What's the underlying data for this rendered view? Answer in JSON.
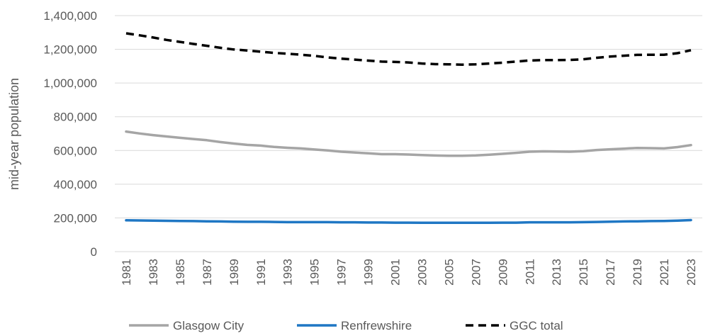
{
  "chart_data": {
    "type": "line",
    "title": "",
    "xlabel": "",
    "ylabel": "mid-year population",
    "ylim": [
      0,
      1400000
    ],
    "y_ticks": [
      0,
      200000,
      400000,
      600000,
      800000,
      1000000,
      1200000,
      1400000
    ],
    "y_tick_labels": [
      "0",
      "200,000",
      "400,000",
      "600,000",
      "800,000",
      "1,000,000",
      "1,200,000",
      "1,400,000"
    ],
    "grid": true,
    "legend_position": "bottom",
    "x": [
      1981,
      1982,
      1983,
      1984,
      1985,
      1986,
      1987,
      1988,
      1989,
      1990,
      1991,
      1992,
      1993,
      1994,
      1995,
      1996,
      1997,
      1998,
      1999,
      2000,
      2001,
      2002,
      2003,
      2004,
      2005,
      2006,
      2007,
      2008,
      2009,
      2010,
      2011,
      2012,
      2013,
      2014,
      2015,
      2016,
      2017,
      2018,
      2019,
      2020,
      2021,
      2022,
      2023
    ],
    "x_tick_labels": [
      "1981",
      "1983",
      "1985",
      "1987",
      "1989",
      "1991",
      "1993",
      "1995",
      "1997",
      "1999",
      "2001",
      "2003",
      "2005",
      "2007",
      "2009",
      "2011",
      "2013",
      "2015",
      "2017",
      "2019",
      "2021",
      "2023"
    ],
    "series": [
      {
        "name": "Glasgow City",
        "color": "#a5a5a5",
        "dash": "solid",
        "values": [
          712000,
          701000,
          691000,
          683000,
          675000,
          668000,
          661000,
          650000,
          641000,
          633000,
          629000,
          621000,
          616000,
          612000,
          606000,
          600000,
          593000,
          588000,
          583000,
          578000,
          578000,
          576000,
          573000,
          570000,
          569000,
          569000,
          571000,
          575000,
          580000,
          586000,
          593000,
          595000,
          594000,
          593000,
          596000,
          603000,
          607000,
          611000,
          615000,
          614000,
          612000,
          620000,
          632000
        ]
      },
      {
        "name": "Renfrewshire",
        "color": "#1f77c4",
        "dash": "solid",
        "values": [
          186000,
          185000,
          184000,
          183000,
          182000,
          181000,
          180000,
          179000,
          178000,
          177000,
          177000,
          176000,
          175000,
          175000,
          175000,
          175000,
          174000,
          174000,
          173000,
          173000,
          172000,
          172000,
          171000,
          171000,
          171000,
          171000,
          171000,
          171000,
          172000,
          172000,
          174000,
          174000,
          174000,
          174000,
          175000,
          176000,
          178000,
          179000,
          180000,
          181000,
          182000,
          184000,
          187000
        ]
      },
      {
        "name": "GGC total",
        "color": "#000000",
        "dash": "dashed",
        "values": [
          1295000,
          1283000,
          1270000,
          1256000,
          1244000,
          1232000,
          1221000,
          1209000,
          1199000,
          1193000,
          1186000,
          1179000,
          1174000,
          1168000,
          1161000,
          1152000,
          1145000,
          1139000,
          1133000,
          1127000,
          1125000,
          1122000,
          1116000,
          1112000,
          1111000,
          1109000,
          1111000,
          1116000,
          1121000,
          1127000,
          1134000,
          1136000,
          1136000,
          1137000,
          1141000,
          1150000,
          1157000,
          1162000,
          1167000,
          1168000,
          1168000,
          1177000,
          1195000
        ]
      }
    ]
  }
}
